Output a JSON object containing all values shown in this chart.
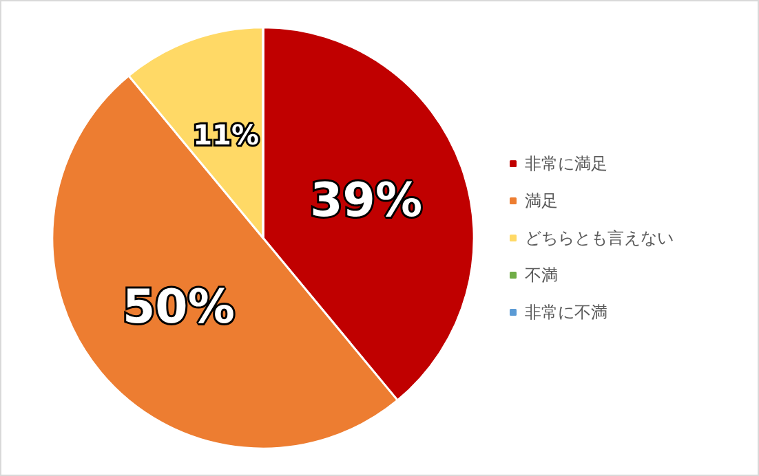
{
  "chart_data": {
    "type": "pie",
    "categories": [
      "非常に満足",
      "満足",
      "どちらとも言えない",
      "不満",
      "非常に不満"
    ],
    "values": [
      39,
      50,
      11,
      0,
      0
    ],
    "colors": [
      "#c00000",
      "#ed7d31",
      "#ffd966",
      "#70ad47",
      "#5b9bd5"
    ],
    "value_labels": [
      "39%",
      "50%",
      "11%",
      null,
      null
    ],
    "legend": "right"
  }
}
